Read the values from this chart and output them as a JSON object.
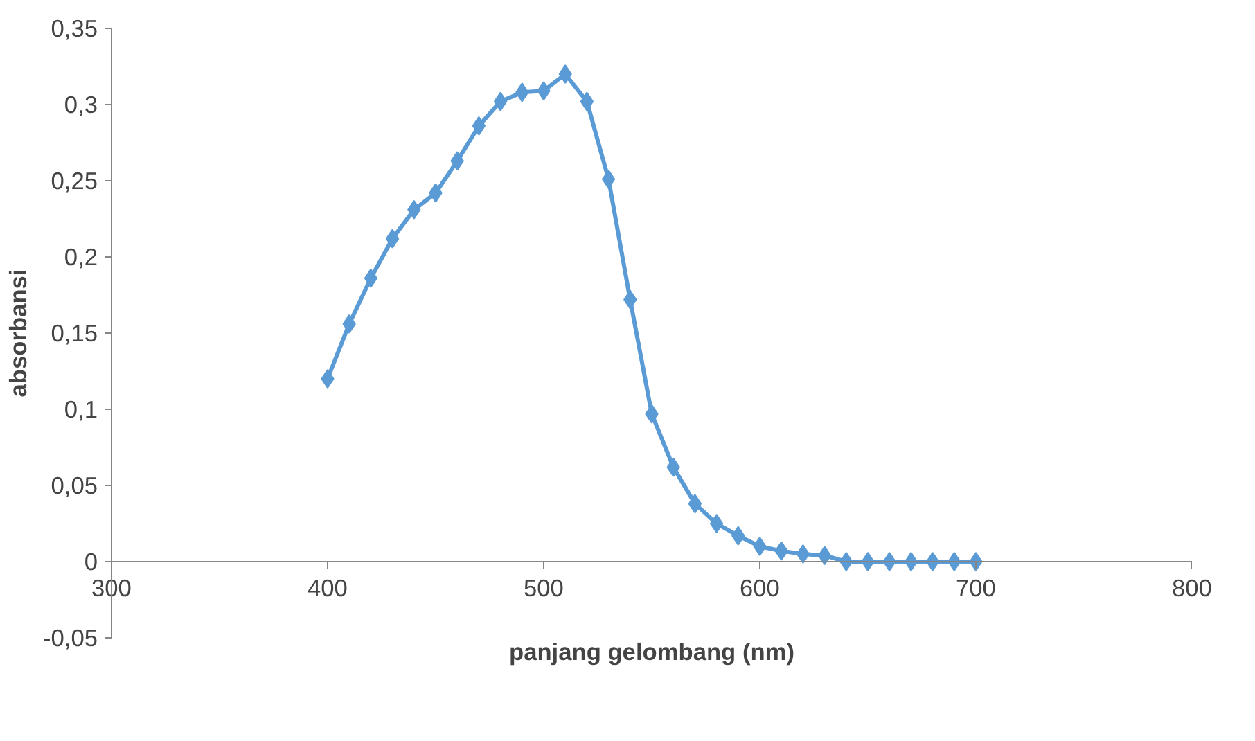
{
  "chart_data": {
    "type": "line",
    "xlabel": "panjang gelombang (nm)",
    "ylabel": "absorbansi",
    "x": [
      400,
      410,
      420,
      430,
      440,
      450,
      460,
      470,
      480,
      490,
      500,
      510,
      520,
      530,
      540,
      550,
      560,
      570,
      580,
      590,
      600,
      610,
      620,
      630,
      640,
      650,
      660,
      670,
      680,
      690,
      700
    ],
    "series": [
      {
        "color": "#5b9bd5",
        "values": [
          0.12,
          0.156,
          0.186,
          0.212,
          0.231,
          0.242,
          0.263,
          0.286,
          0.302,
          0.308,
          0.309,
          0.32,
          0.302,
          0.251,
          0.172,
          0.097,
          0.062,
          0.038,
          0.025,
          0.017,
          0.01,
          0.007,
          0.005,
          0.004,
          0,
          0,
          0,
          0,
          0,
          0,
          0
        ]
      }
    ],
    "xlim": [
      300,
      800
    ],
    "xticks": [
      300,
      400,
      500,
      600,
      700,
      800
    ],
    "ylim": [
      -0.05,
      0.35
    ],
    "yticks": [
      {
        "value": -0.05,
        "label": "-0,05"
      },
      {
        "value": 0,
        "label": "0"
      },
      {
        "value": 0.05,
        "label": "0,05"
      },
      {
        "value": 0.1,
        "label": "0,1"
      },
      {
        "value": 0.15,
        "label": "0,15"
      },
      {
        "value": 0.2,
        "label": "0,2"
      },
      {
        "value": 0.25,
        "label": "0,25"
      },
      {
        "value": 0.3,
        "label": "0,3"
      },
      {
        "value": 0.35,
        "label": "0,35"
      }
    ],
    "marker": "diamond",
    "line_style": "solid",
    "grid": false
  }
}
